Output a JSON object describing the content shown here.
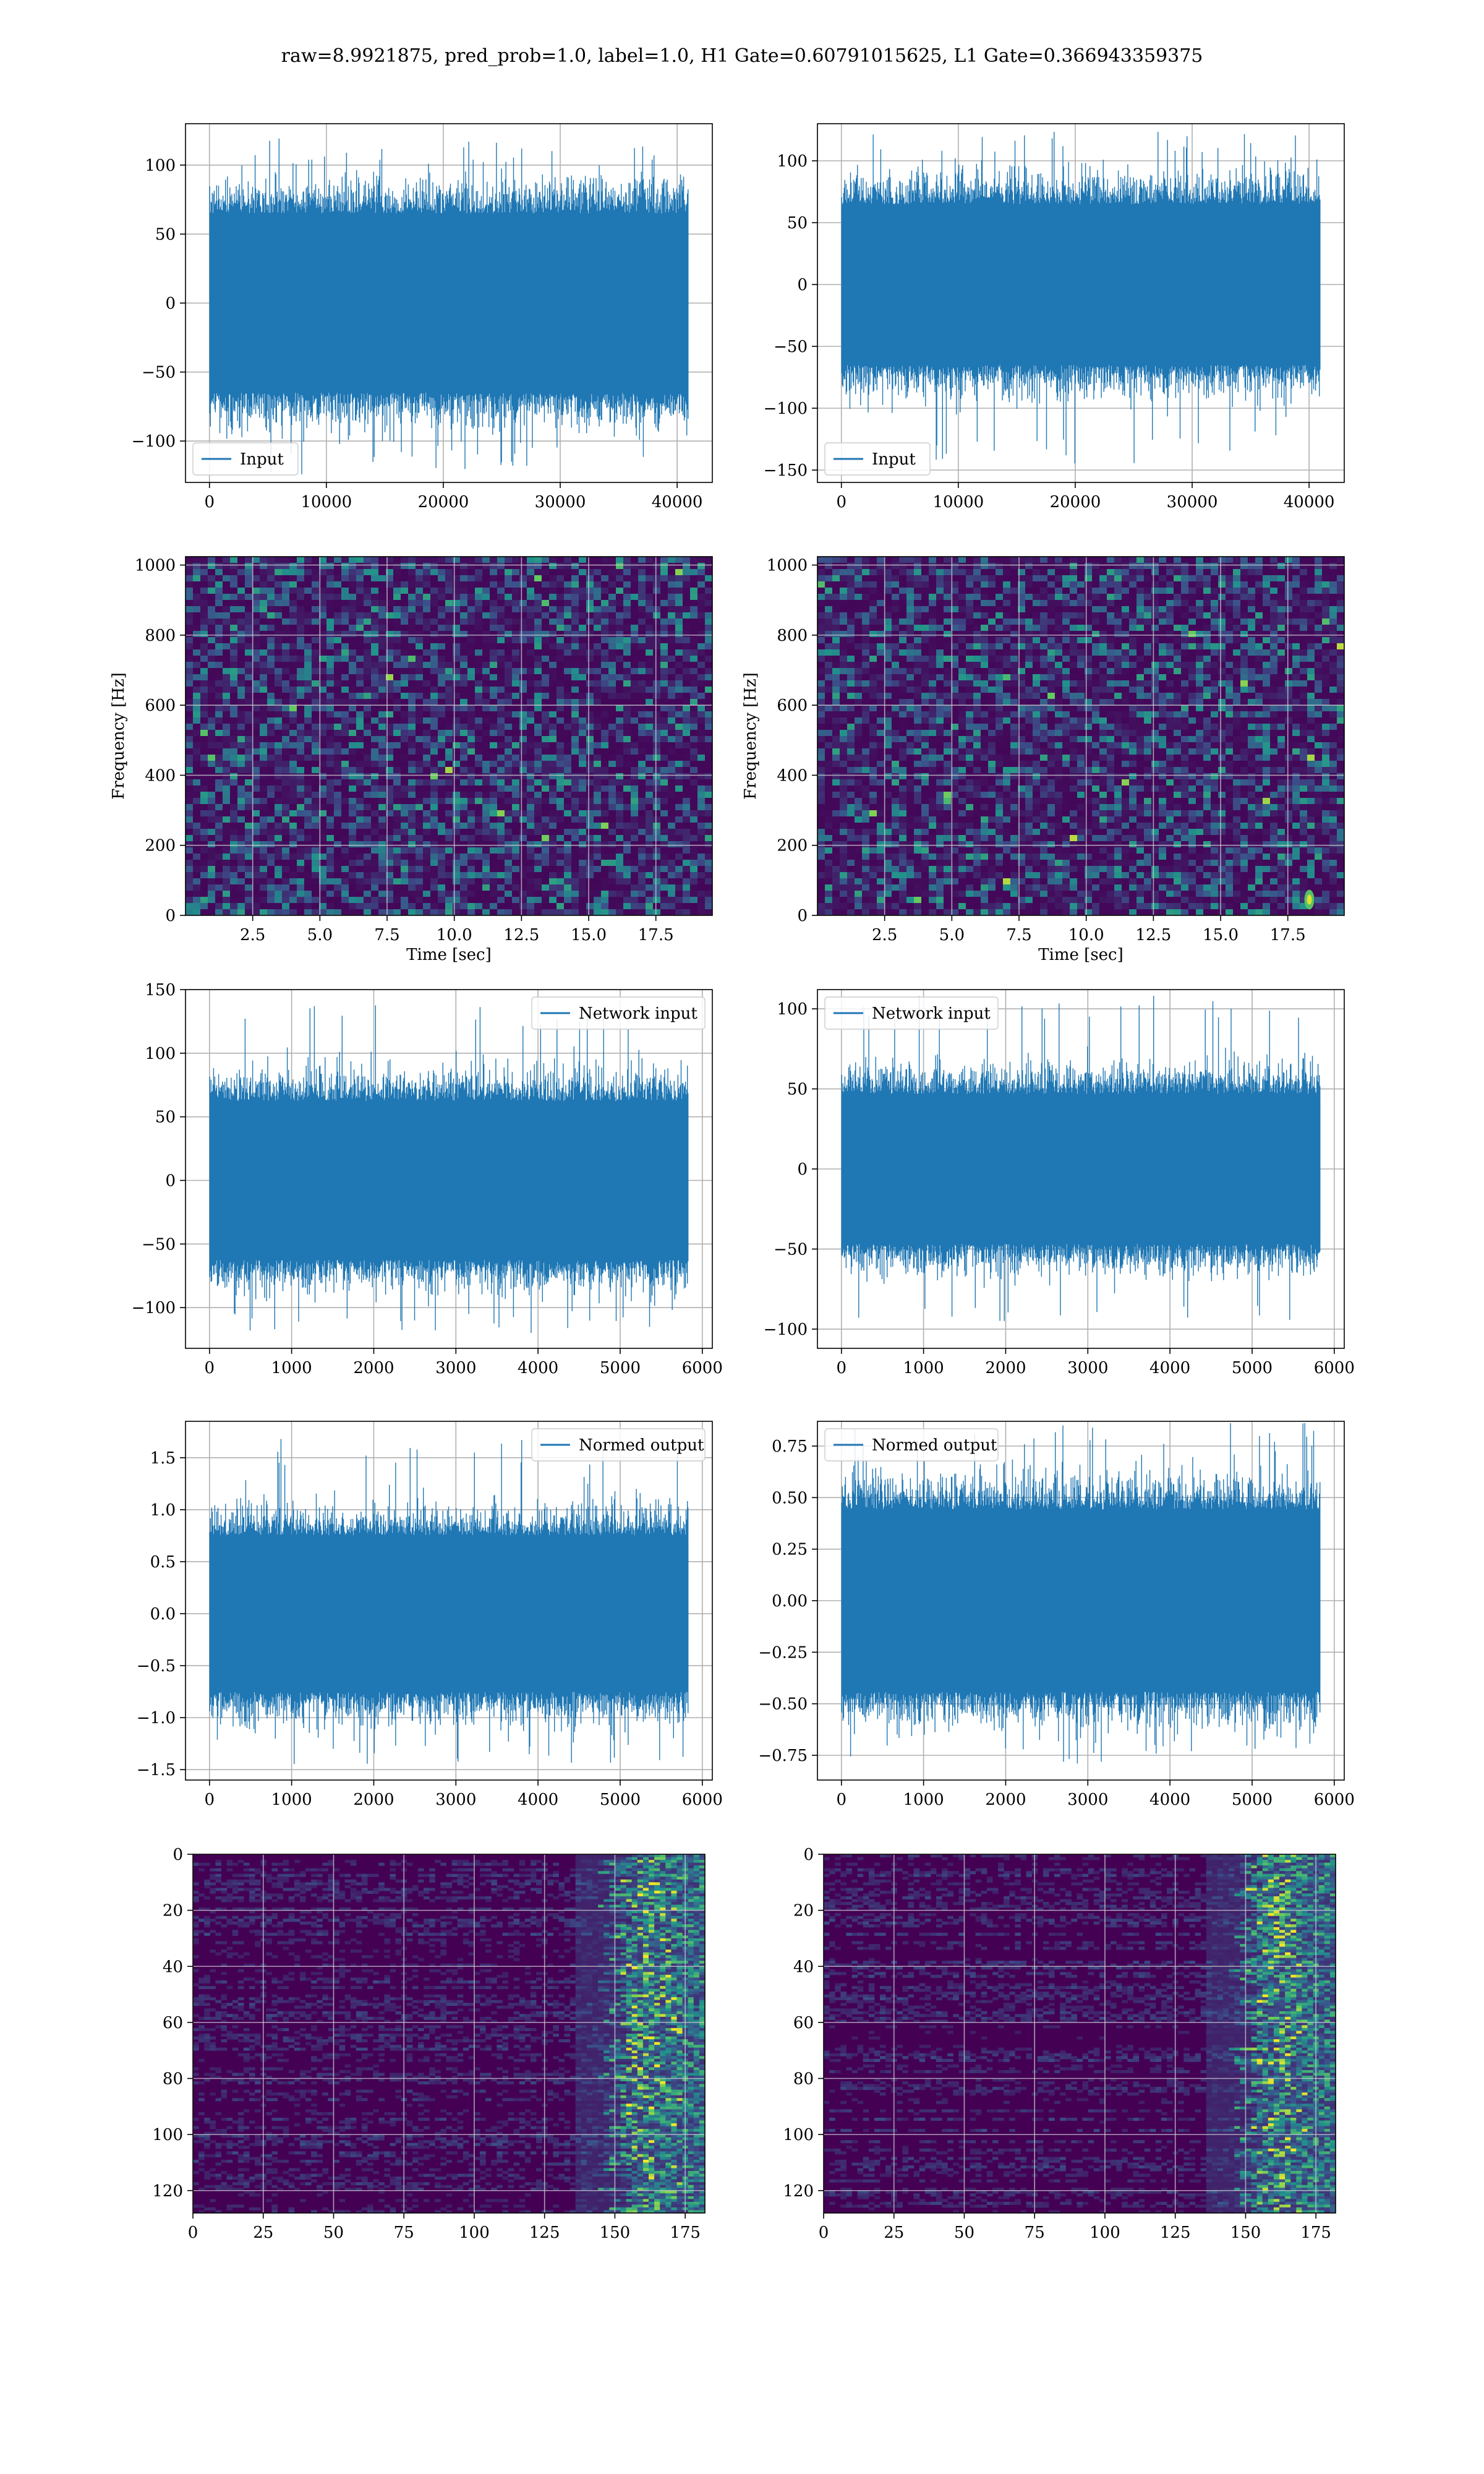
{
  "suptitle": "raw=8.9921875, pred_prob=1.0, label=1.0, H1 Gate=0.60791015625, L1 Gate=0.366943359375",
  "colors": {
    "line": "#1f77b4",
    "grid": "#b0b0b0",
    "viridis_low": "#440154",
    "viridis_mid": "#21918c",
    "viridis_high": "#fde725"
  },
  "chart_data": [
    {
      "id": "h1_input",
      "type": "line",
      "detector": "H1",
      "series": [
        {
          "name": "Input",
          "n_samples": 40960,
          "amplitude_std": 25,
          "peak_max": 120,
          "peak_min": -125
        }
      ],
      "xlim": [
        -2048,
        43008
      ],
      "ylim": [
        -130,
        130
      ],
      "xticks": [
        0,
        10000,
        20000,
        30000,
        40000
      ],
      "yticks": [
        -100,
        -50,
        0,
        50,
        100
      ],
      "xtick_labels": [
        "0",
        "10000",
        "20000",
        "30000",
        "40000"
      ],
      "ytick_labels": [
        "−100",
        "−50",
        "0",
        "50",
        "100"
      ],
      "xlabel": "",
      "ylabel": "",
      "legend": "lower left",
      "grid": true
    },
    {
      "id": "l1_input",
      "type": "line",
      "detector": "L1",
      "series": [
        {
          "name": "Input",
          "n_samples": 40960,
          "amplitude_std": 25,
          "peak_max": 125,
          "peak_min": -145
        }
      ],
      "xlim": [
        -2048,
        43008
      ],
      "ylim": [
        -160,
        130
      ],
      "xticks": [
        0,
        10000,
        20000,
        30000,
        40000
      ],
      "yticks": [
        -150,
        -100,
        -50,
        0,
        50,
        100
      ],
      "xtick_labels": [
        "0",
        "10000",
        "20000",
        "30000",
        "40000"
      ],
      "ytick_labels": [
        "−150",
        "−100",
        "−50",
        "0",
        "50",
        "100"
      ],
      "xlabel": "",
      "ylabel": "",
      "legend": "lower left",
      "grid": true
    },
    {
      "id": "h1_spectrogram",
      "type": "heatmap",
      "detector": "H1",
      "colormap": "viridis",
      "xlim": [
        0,
        19.6
      ],
      "ylim": [
        0,
        1024
      ],
      "xticks": [
        2.5,
        5.0,
        7.5,
        10.0,
        12.5,
        15.0,
        17.5
      ],
      "yticks": [
        0,
        200,
        400,
        600,
        800,
        1000
      ],
      "xtick_labels": [
        "2.5",
        "5.0",
        "7.5",
        "10.0",
        "12.5",
        "15.0",
        "17.5"
      ],
      "ytick_labels": [
        "0",
        "200",
        "400",
        "600",
        "800",
        "1000"
      ],
      "xlabel": "Time [sec]",
      "ylabel": "Frequency [Hz]",
      "grid": true
    },
    {
      "id": "l1_spectrogram",
      "type": "heatmap",
      "detector": "L1",
      "colormap": "viridis",
      "xlim": [
        0,
        19.6
      ],
      "ylim": [
        0,
        1024
      ],
      "xticks": [
        2.5,
        5.0,
        7.5,
        10.0,
        12.5,
        15.0,
        17.5
      ],
      "yticks": [
        0,
        200,
        400,
        600,
        800,
        1000
      ],
      "xtick_labels": [
        "2.5",
        "5.0",
        "7.5",
        "10.0",
        "12.5",
        "15.0",
        "17.5"
      ],
      "ytick_labels": [
        "0",
        "200",
        "400",
        "600",
        "800",
        "1000"
      ],
      "xlabel": "Time [sec]",
      "ylabel": "Frequency [Hz]",
      "grid": true,
      "highlight": {
        "t": 18.3,
        "f": 45
      }
    },
    {
      "id": "h1_network_input",
      "type": "line",
      "detector": "H1",
      "series": [
        {
          "name": "Network input",
          "n_samples": 5830,
          "amplitude_std": 24,
          "peak_max": 138,
          "peak_min": -120
        }
      ],
      "xlim": [
        -292,
        6122
      ],
      "ylim": [
        -132,
        150
      ],
      "xticks": [
        0,
        1000,
        2000,
        3000,
        4000,
        5000,
        6000
      ],
      "yticks": [
        -100,
        -50,
        0,
        50,
        100,
        150
      ],
      "xtick_labels": [
        "0",
        "1000",
        "2000",
        "3000",
        "4000",
        "5000",
        "6000"
      ],
      "ytick_labels": [
        "−100",
        "−50",
        "0",
        "50",
        "100",
        "150"
      ],
      "xlabel": "",
      "ylabel": "",
      "legend": "upper right",
      "grid": true
    },
    {
      "id": "l1_network_input",
      "type": "line",
      "detector": "L1",
      "series": [
        {
          "name": "Network input",
          "n_samples": 5830,
          "amplitude_std": 18,
          "peak_max": 110,
          "peak_min": -100
        }
      ],
      "xlim": [
        -292,
        6122
      ],
      "ylim": [
        -112,
        112
      ],
      "xticks": [
        0,
        1000,
        2000,
        3000,
        4000,
        5000,
        6000
      ],
      "yticks": [
        -100,
        -50,
        0,
        50,
        100
      ],
      "xtick_labels": [
        "0",
        "1000",
        "2000",
        "3000",
        "4000",
        "5000",
        "6000"
      ],
      "ytick_labels": [
        "−100",
        "−50",
        "0",
        "50",
        "100"
      ],
      "xlabel": "",
      "ylabel": "",
      "legend": "upper left",
      "grid": true
    },
    {
      "id": "h1_normed_output",
      "type": "line",
      "detector": "H1",
      "series": [
        {
          "name": "Normed output",
          "n_samples": 5830,
          "amplitude_std": 0.29,
          "peak_max": 1.68,
          "peak_min": -1.45
        }
      ],
      "xlim": [
        -292,
        6122
      ],
      "ylim": [
        -1.6,
        1.85
      ],
      "xticks": [
        0,
        1000,
        2000,
        3000,
        4000,
        5000,
        6000
      ],
      "yticks": [
        -1.5,
        -1.0,
        -0.5,
        0.0,
        0.5,
        1.0,
        1.5
      ],
      "xtick_labels": [
        "0",
        "1000",
        "2000",
        "3000",
        "4000",
        "5000",
        "6000"
      ],
      "ytick_labels": [
        "−1.5",
        "−1.0",
        "−0.5",
        "0.0",
        "0.5",
        "1.0",
        "1.5"
      ],
      "xlabel": "",
      "ylabel": "",
      "legend": "upper right",
      "grid": true
    },
    {
      "id": "l1_normed_output",
      "type": "line",
      "detector": "L1",
      "series": [
        {
          "name": "Normed output",
          "n_samples": 5830,
          "amplitude_std": 0.17,
          "peak_max": 0.87,
          "peak_min": -0.79
        }
      ],
      "xlim": [
        -292,
        6122
      ],
      "ylim": [
        -0.87,
        0.87
      ],
      "xticks": [
        0,
        1000,
        2000,
        3000,
        4000,
        5000,
        6000
      ],
      "yticks": [
        -0.75,
        -0.5,
        -0.25,
        0.0,
        0.25,
        0.5,
        0.75
      ],
      "xtick_labels": [
        "0",
        "1000",
        "2000",
        "3000",
        "4000",
        "5000",
        "6000"
      ],
      "ytick_labels": [
        "−0.75",
        "−0.50",
        "−0.25",
        "0.00",
        "0.25",
        "0.50",
        "0.75"
      ],
      "xlabel": "",
      "ylabel": "",
      "legend": "upper left",
      "grid": true
    },
    {
      "id": "h1_features",
      "type": "heatmap",
      "detector": "H1",
      "colormap": "viridis",
      "xlim": [
        0,
        182
      ],
      "ylim": [
        128,
        0
      ],
      "rows": 128,
      "cols": 182,
      "xticks": [
        0,
        25,
        50,
        75,
        100,
        125,
        150,
        175
      ],
      "yticks": [
        0,
        20,
        40,
        60,
        80,
        100,
        120
      ],
      "xtick_labels": [
        "0",
        "25",
        "50",
        "75",
        "100",
        "125",
        "150",
        "175"
      ],
      "ytick_labels": [
        "0",
        "20",
        "40",
        "60",
        "80",
        "100",
        "120"
      ],
      "xlabel": "",
      "ylabel": "",
      "grid": true,
      "active_band": [
        150,
        182
      ]
    },
    {
      "id": "l1_features",
      "type": "heatmap",
      "detector": "L1",
      "colormap": "viridis",
      "xlim": [
        0,
        182
      ],
      "ylim": [
        128,
        0
      ],
      "rows": 128,
      "cols": 182,
      "xticks": [
        0,
        25,
        50,
        75,
        100,
        125,
        150,
        175
      ],
      "yticks": [
        0,
        20,
        40,
        60,
        80,
        100,
        120
      ],
      "xtick_labels": [
        "0",
        "25",
        "50",
        "75",
        "100",
        "125",
        "150",
        "175"
      ],
      "ytick_labels": [
        "0",
        "20",
        "40",
        "60",
        "80",
        "100",
        "120"
      ],
      "xlabel": "",
      "ylabel": "",
      "grid": true,
      "active_band": [
        150,
        182
      ]
    }
  ]
}
